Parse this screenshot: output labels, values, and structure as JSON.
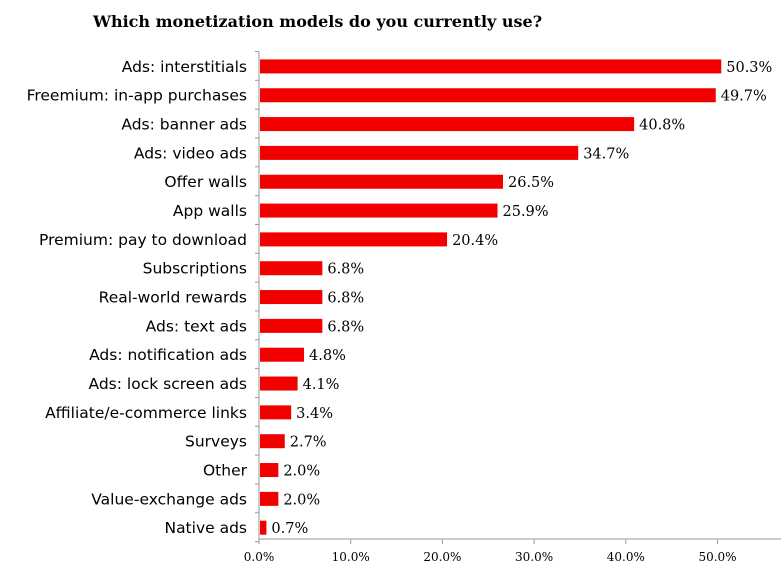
{
  "chart_data": {
    "type": "bar",
    "orientation": "horizontal",
    "title": "Which monetization models do you currently use?",
    "xlabel": "",
    "ylabel": "",
    "categories": [
      "Ads: interstitials",
      "Freemium: in-app purchases",
      "Ads: banner ads",
      "Ads: video ads",
      "Offer walls",
      "App walls",
      "Premium: pay to download",
      "Subscriptions",
      "Real-world rewards",
      "Ads: text ads",
      "Ads: notification ads",
      "Ads: lock screen ads",
      "Affiliate/e-commerce links",
      "Surveys",
      "Other",
      "Value-exchange ads",
      "Native ads"
    ],
    "values": [
      50.3,
      49.7,
      40.8,
      34.7,
      26.5,
      25.9,
      20.4,
      6.8,
      6.8,
      6.8,
      4.8,
      4.1,
      3.4,
      2.7,
      2.0,
      2.0,
      0.7
    ],
    "value_labels": [
      "50.3%",
      "49.7%",
      "40.8%",
      "34.7%",
      "26.5%",
      "25.9%",
      "20.4%",
      "6.8%",
      "6.8%",
      "6.8%",
      "4.8%",
      "4.1%",
      "3.4%",
      "2.7%",
      "2.0%",
      "2.0%",
      "0.7%"
    ],
    "xlim": [
      0,
      57
    ],
    "xticks": [
      0,
      10,
      20,
      30,
      40,
      50
    ],
    "xtick_labels": [
      "0.0%",
      "10.0%",
      "20.0%",
      "30.0%",
      "40.0%",
      "50.0%"
    ],
    "grid": false,
    "legend": "none",
    "bar_color": "#f20000",
    "axis_color": "#9a9a9a"
  }
}
